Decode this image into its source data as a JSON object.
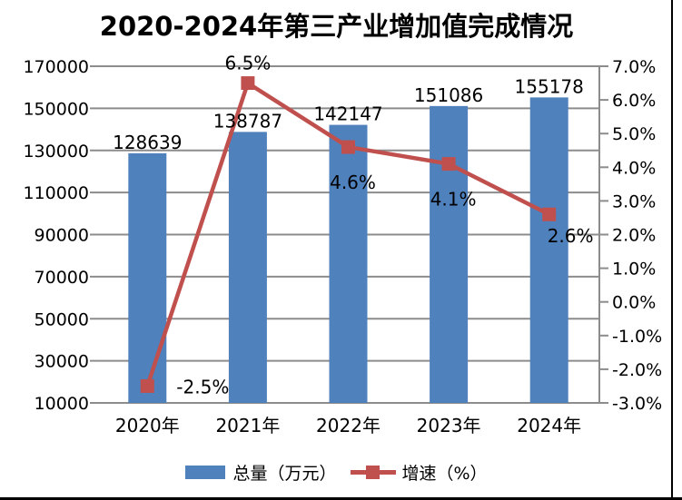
{
  "page": {
    "background": "#FFFFFF",
    "border_color": "#000000"
  },
  "chart_data": {
    "type": "combo-bar-line",
    "title": "2020-2024年第三产业增加值完成情况",
    "categories": [
      "2020年",
      "2021年",
      "2022年",
      "2023年",
      "2024年"
    ],
    "series": [
      {
        "name": "总量（万元）",
        "type": "bar",
        "axis": "left",
        "color": "#4F81BD",
        "values": [
          128639,
          138787,
          142147,
          151086,
          155178
        ],
        "labels": [
          "128639",
          "138787",
          "142147",
          "151086",
          "155178"
        ]
      },
      {
        "name": "增速（%）",
        "type": "line",
        "axis": "right",
        "color": "#C0504D",
        "values": [
          -2.5,
          6.5,
          4.6,
          4.1,
          2.6
        ],
        "labels": [
          "-2.5%",
          "6.5%",
          "4.6%",
          "4.1%",
          "2.6%"
        ],
        "label_positions": [
          "right",
          "above",
          "below",
          "below",
          "below-right"
        ]
      }
    ],
    "axes": {
      "left": {
        "min": 10000,
        "max": 170000,
        "step": 20000,
        "tick_labels": [
          "170000",
          "150000",
          "130000",
          "110000",
          "90000",
          "70000",
          "50000",
          "30000",
          "10000"
        ]
      },
      "right": {
        "min": -3.0,
        "max": 7.0,
        "step": 1.0,
        "tick_labels": [
          "7.0%",
          "6.0%",
          "5.0%",
          "4.0%",
          "3.0%",
          "2.0%",
          "1.0%",
          "0.0%",
          "-1.0%",
          "-2.0%",
          "-3.0%"
        ]
      }
    },
    "grid": true,
    "legend": {
      "position": "bottom",
      "items": [
        {
          "label": "总量（万元）",
          "marker": "bar-swatch",
          "color": "#4F81BD"
        },
        {
          "label": "增速（%）",
          "marker": "line-square",
          "color": "#C0504D"
        }
      ]
    },
    "colors": {
      "bar": "#4F81BD",
      "line": "#C0504D",
      "grid": "#8C8C8C",
      "axis": "#8C8C8C",
      "text": "#000000",
      "background": "#FFFFFF"
    }
  }
}
